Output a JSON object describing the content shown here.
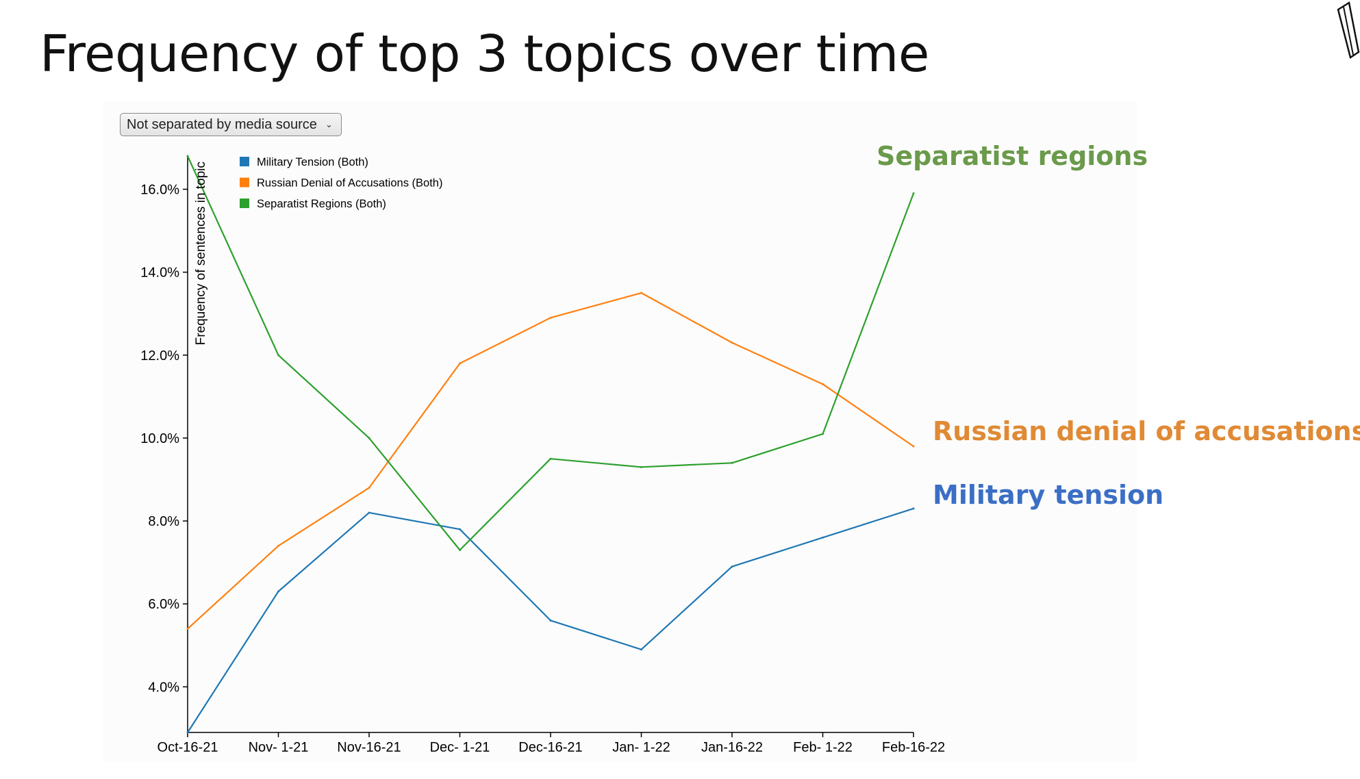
{
  "title": "Frequency of top 3 topics over time",
  "controls": {
    "media_source_select": "Not separated by media source"
  },
  "annotations": [
    {
      "text": "Separatist regions",
      "color": "#6a9a4a"
    },
    {
      "text": "Russian denial of accusations",
      "color": "#e08a35"
    },
    {
      "text": "Military tension",
      "color": "#3b6fc6"
    }
  ],
  "chart_data": {
    "type": "line",
    "title": "",
    "xlabel": "",
    "ylabel": "Frequency of sentences in topic",
    "x": [
      "Oct-16-21",
      "Nov- 1-21",
      "Nov-16-21",
      "Dec- 1-21",
      "Dec-16-21",
      "Jan- 1-22",
      "Jan-16-22",
      "Feb- 1-22",
      "Feb-16-22"
    ],
    "ylim": [
      2.9,
      16.8
    ],
    "yticks": [
      4.0,
      6.0,
      8.0,
      10.0,
      12.0,
      14.0,
      16.0
    ],
    "ytick_labels": [
      "4.0%",
      "6.0%",
      "8.0%",
      "10.0%",
      "12.0%",
      "14.0%",
      "16.0%"
    ],
    "y_unit": "%",
    "legend_position": "top-left",
    "grid": false,
    "series": [
      {
        "name": "Military Tension (Both)",
        "color": "#1f77b4",
        "values": [
          2.9,
          6.3,
          8.2,
          7.8,
          5.6,
          4.9,
          6.9,
          7.6,
          8.3
        ]
      },
      {
        "name": "Russian Denial of Accusations (Both)",
        "color": "#ff7f0e",
        "values": [
          5.4,
          7.4,
          8.8,
          11.8,
          12.9,
          13.5,
          12.3,
          11.3,
          9.8
        ]
      },
      {
        "name": "Separatist Regions (Both)",
        "color": "#2ca02c",
        "values": [
          16.8,
          12.0,
          10.0,
          7.3,
          9.5,
          9.3,
          9.4,
          10.1,
          15.9
        ]
      }
    ]
  }
}
